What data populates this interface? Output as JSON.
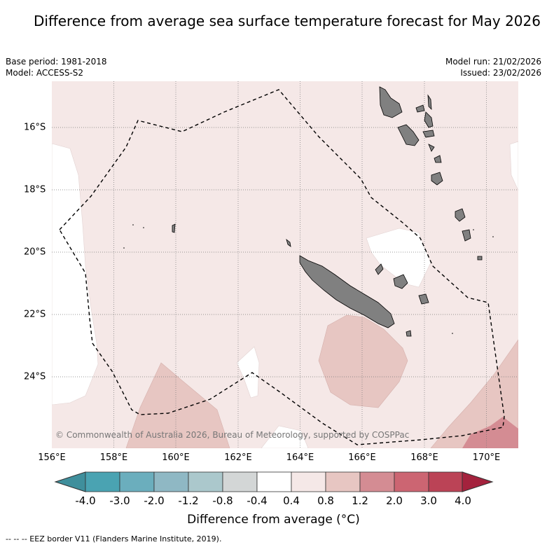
{
  "title": "Difference from average sea surface temperature forecast for May 2026",
  "base_period": "Base period: 1981-2018",
  "model": "Model: ACCESS-S2",
  "model_run": "Model run: 21/02/2026",
  "issued": "Issued: 23/02/2026",
  "copyright": "© Commonwealth of Australia 2026, Bureau of Meteorology, supported by COSPPac",
  "footnote": "-- -- -- EEZ border V11 (Flanders Marine Institute, 2019).",
  "lon_labels": [
    "156°E",
    "158°E",
    "160°E",
    "162°E",
    "164°E",
    "166°E",
    "168°E",
    "170°E"
  ],
  "lat_labels": [
    "16°S",
    "18°S",
    "20°S",
    "22°S",
    "24°S"
  ],
  "colorbar": {
    "title": "Difference from average (°C)",
    "tick_labels": [
      "-4.0",
      "-3.0",
      "-2.0",
      "-1.2",
      "-0.8",
      "-0.4",
      "0.4",
      "0.8",
      "1.2",
      "2.0",
      "3.0",
      "4.0"
    ],
    "colors": [
      "#3f8f9c",
      "#4aa3b2",
      "#6baebd",
      "#8fb8c4",
      "#abc8cc",
      "#d3d6d6",
      "#ffffff",
      "#f5e8e7",
      "#e7c6c2",
      "#d48c93",
      "#cc6572",
      "#bb4356",
      "#a4223d"
    ]
  },
  "colors": {
    "land": "#808080",
    "sea_background": "#f5e8e7",
    "warm_1": "#e7c6c2",
    "warm_2": "#d48c93"
  }
}
